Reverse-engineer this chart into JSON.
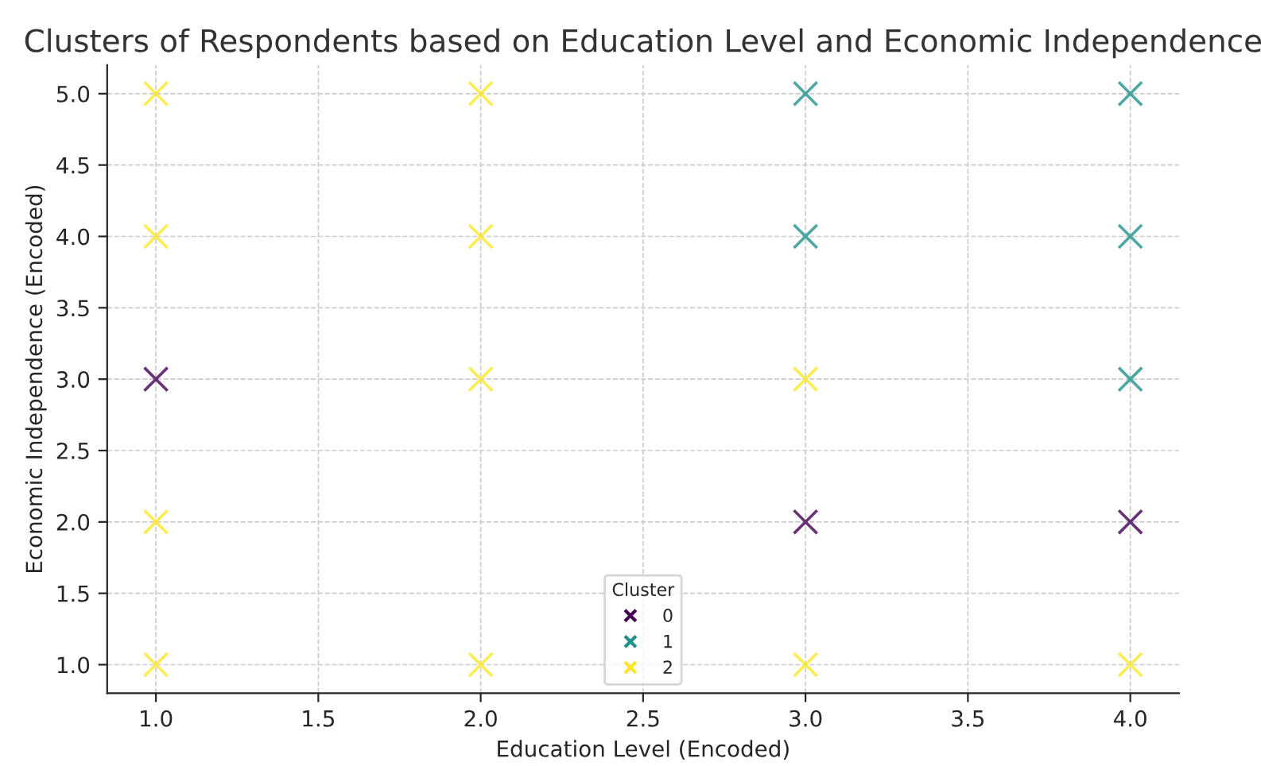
{
  "chart_data": {
    "type": "scatter",
    "title": "Clusters of Respondents based on Education Level and Economic Independence",
    "xlabel": "Education Level (Encoded)",
    "ylabel": "Economic Independence (Encoded)",
    "legend_title": "Cluster",
    "legend": "bottom",
    "grid": true,
    "marker": "cross",
    "xlim": [
      0.85,
      4.15
    ],
    "xticks": [
      {
        "value": 1.0,
        "label": "1.0"
      },
      {
        "value": 1.5,
        "label": "1.5"
      },
      {
        "value": 2.0,
        "label": "2.0"
      },
      {
        "value": 2.5,
        "label": "2.5"
      },
      {
        "value": 3.0,
        "label": "3.0"
      },
      {
        "value": 3.5,
        "label": "3.5"
      },
      {
        "value": 4.0,
        "label": "4.0"
      }
    ],
    "ylim": [
      0.8,
      5.2
    ],
    "yticks": [
      {
        "value": 1.0,
        "label": "1.0"
      },
      {
        "value": 1.5,
        "label": "1.5"
      },
      {
        "value": 2.0,
        "label": "2.0"
      },
      {
        "value": 2.5,
        "label": "2.5"
      },
      {
        "value": 3.0,
        "label": "3.0"
      },
      {
        "value": 3.5,
        "label": "3.5"
      },
      {
        "value": 4.0,
        "label": "4.0"
      },
      {
        "value": 4.5,
        "label": "4.5"
      },
      {
        "value": 5.0,
        "label": "5.0"
      }
    ],
    "series": [
      {
        "name": "0",
        "color": "#440154",
        "x": [
          1,
          3,
          4
        ],
        "values": [
          3,
          2,
          2
        ]
      },
      {
        "name": "1",
        "color": "#21918c",
        "x": [
          3,
          3,
          4,
          4,
          4
        ],
        "values": [
          5,
          4,
          5,
          4,
          3
        ]
      },
      {
        "name": "2",
        "color": "#fde725",
        "x": [
          1,
          1,
          1,
          1,
          2,
          2,
          2,
          2,
          3,
          3,
          4
        ],
        "values": [
          5,
          4,
          2,
          1,
          5,
          4,
          3,
          1,
          3,
          1,
          1
        ]
      }
    ]
  }
}
